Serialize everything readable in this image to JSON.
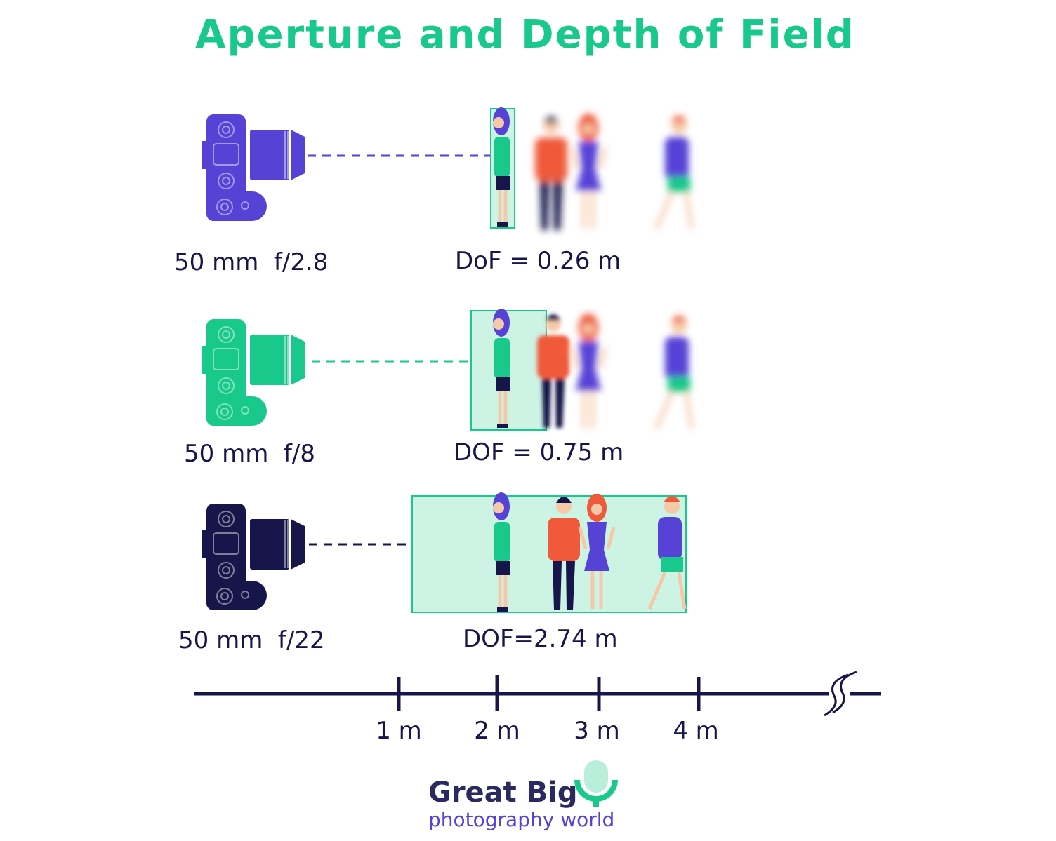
{
  "title": "Aperture and Depth of Field",
  "rows": [
    {
      "setting": "50 mm  f/2.8",
      "dof": "DoF = 0.26 m"
    },
    {
      "setting": "50 mm  f/8",
      "dof": "DOF = 0.75 m"
    },
    {
      "setting": "50 mm  f/22",
      "dof": "DOF=2.74 m"
    }
  ],
  "scale": {
    "ticks": [
      "1 m",
      "2 m",
      "3 m",
      "4 m"
    ]
  },
  "logo": {
    "line1": "Great Big",
    "line2": "photography world"
  }
}
